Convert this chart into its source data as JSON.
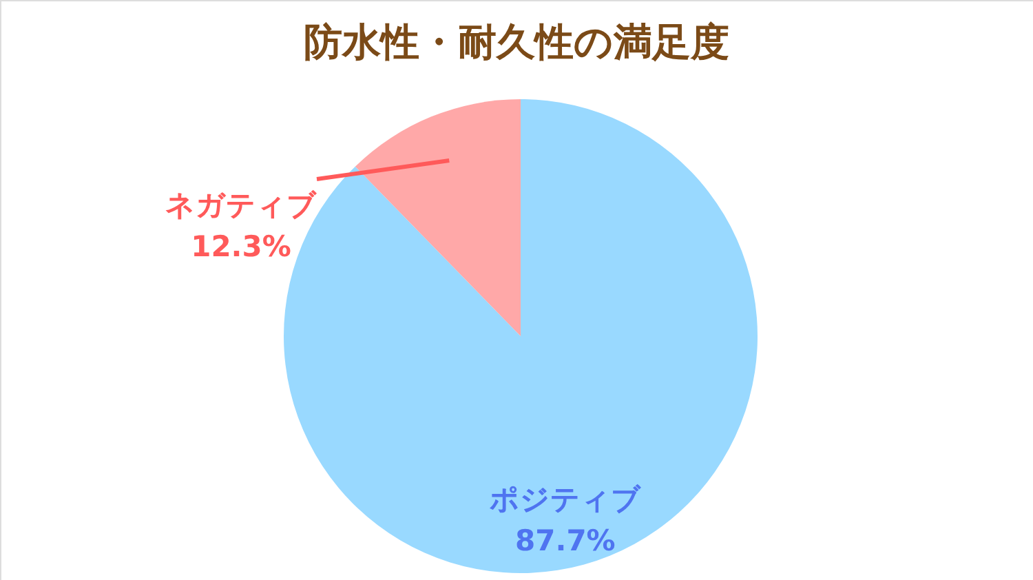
{
  "chart_data": {
    "type": "pie",
    "title": "防水性・耐久性の満足度",
    "categories": [
      "ポジティブ",
      "ネガティブ"
    ],
    "values": [
      87.7,
      12.3
    ],
    "value_labels": [
      "87.7%",
      "12.3%"
    ],
    "colors": [
      "#99d9ff",
      "#ffa8a8"
    ]
  }
}
